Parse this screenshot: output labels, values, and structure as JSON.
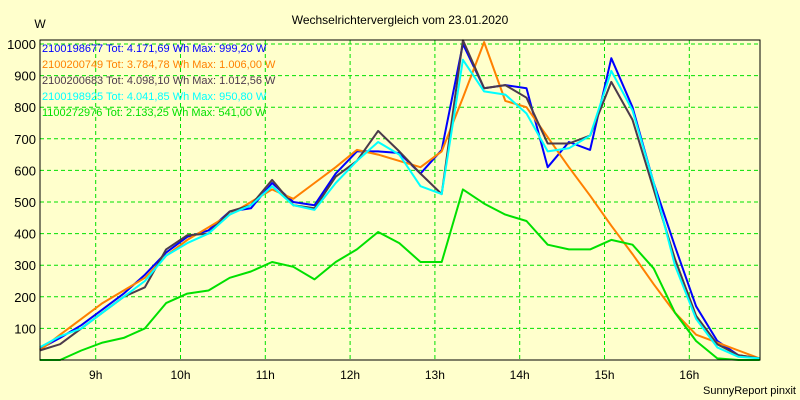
{
  "chart_data": {
    "type": "line",
    "title": "Wechselrichtervergleich vom 23.01.2020",
    "ylabel": "W",
    "xlabel": "",
    "footer": "SunnyReport pinxit",
    "ylim": [
      0,
      1000
    ],
    "xlim": [
      8.34,
      16.83
    ],
    "yticks": [
      100,
      200,
      300,
      400,
      500,
      600,
      700,
      800,
      900,
      1000
    ],
    "xticks": [
      {
        "value": 9,
        "label": "9h"
      },
      {
        "value": 10,
        "label": "10h"
      },
      {
        "value": 11,
        "label": "11h"
      },
      {
        "value": 12,
        "label": "12h"
      },
      {
        "value": 13,
        "label": "13h"
      },
      {
        "value": 14,
        "label": "14h"
      },
      {
        "value": 15,
        "label": "15h"
      },
      {
        "value": 16,
        "label": "16h"
      }
    ],
    "grid": true,
    "legend_position": "top-left",
    "x": [
      8.34,
      8.58,
      8.83,
      9.08,
      9.33,
      9.58,
      9.83,
      10.08,
      10.33,
      10.58,
      10.83,
      11.08,
      11.33,
      11.58,
      11.83,
      12.08,
      12.33,
      12.58,
      12.83,
      13.08,
      13.33,
      13.58,
      13.83,
      14.08,
      14.33,
      14.58,
      14.83,
      15.08,
      15.33,
      15.58,
      15.83,
      16.08,
      16.33,
      16.58,
      16.83
    ],
    "series": [
      {
        "name": "2100198677",
        "legend": "2100198677 Tot: 4.171,69 Wh Max: 999,20 W",
        "color": "#0000ff",
        "values": [
          35,
          70,
          110,
          160,
          210,
          270,
          340,
          390,
          410,
          470,
          480,
          560,
          500,
          490,
          590,
          660,
          660,
          655,
          590,
          665,
          1000,
          860,
          870,
          860,
          610,
          690,
          665,
          955,
          800,
          560,
          360,
          170,
          60,
          15,
          5
        ]
      },
      {
        "name": "2100200749",
        "legend": "2100200749 Tot: 3.784,78 Wh Max: 1.006,00 W",
        "color": "#ff8000",
        "values": [
          30,
          80,
          130,
          180,
          220,
          260,
          330,
          380,
          420,
          460,
          500,
          540,
          510,
          560,
          610,
          665,
          650,
          630,
          610,
          660,
          830,
          1006,
          820,
          800,
          705,
          610,
          520,
          425,
          335,
          240,
          150,
          80,
          55,
          30,
          5
        ]
      },
      {
        "name": "2100200683",
        "legend": "2100200683 Tot: 4.098,10 Wh Max: 1.012,56 W",
        "color": "#4b3a4b",
        "values": [
          30,
          50,
          100,
          150,
          200,
          230,
          350,
          395,
          400,
          470,
          490,
          570,
          490,
          480,
          580,
          630,
          725,
          660,
          590,
          525,
          1012,
          860,
          870,
          830,
          685,
          685,
          710,
          880,
          760,
          540,
          320,
          140,
          50,
          15,
          5
        ]
      },
      {
        "name": "2100198925",
        "legend": "2100198925 Tot: 4.041,85 Wh Max: 950,80 W",
        "color": "#00ffff",
        "values": [
          40,
          75,
          100,
          150,
          200,
          250,
          330,
          370,
          400,
          460,
          490,
          550,
          490,
          475,
          560,
          630,
          690,
          650,
          550,
          525,
          950,
          850,
          840,
          780,
          660,
          670,
          710,
          915,
          790,
          560,
          300,
          130,
          40,
          10,
          5
        ]
      },
      {
        "name": "1100272976",
        "legend": "1100272976 Tot: 2.133,25 Wh Max: 541,00 W",
        "color": "#00e000",
        "values": [
          0,
          0,
          30,
          55,
          70,
          100,
          180,
          210,
          220,
          260,
          280,
          310,
          295,
          255,
          310,
          350,
          405,
          370,
          310,
          310,
          540,
          495,
          460,
          440,
          365,
          350,
          350,
          380,
          365,
          290,
          150,
          60,
          5,
          0,
          0
        ]
      }
    ]
  }
}
